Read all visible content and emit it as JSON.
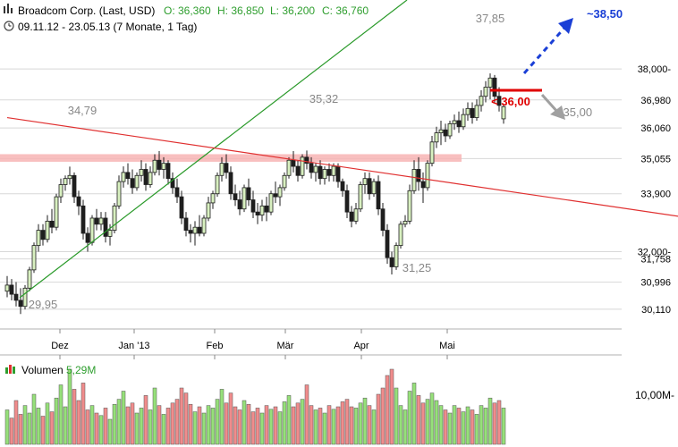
{
  "header": {
    "title": "Broadcom Corp. (Last, USD)",
    "ohlc": [
      {
        "label": "O: 36,360",
        "color": "#2e9e2e"
      },
      {
        "label": "H: 36,850",
        "color": "#2e9e2e"
      },
      {
        "label": "L: 36,200",
        "color": "#2e9e2e"
      },
      {
        "label": "C: 36,760",
        "color": "#2e9e2e"
      }
    ],
    "range": "09.11.12 - 23.05.13 (7 Monate, 1 Tag)",
    "icon": "chart-bars-icon",
    "clock_icon": "clock-icon"
  },
  "colors": {
    "up": "#d8f0c0",
    "down": "#1e1e1e",
    "vol_up": "#96e07a",
    "vol_down": "#f08c8c",
    "trend_green": "#2a9a2a",
    "trend_red": "#e03030",
    "zone": "#f7b4b4",
    "target_blue": "#1a3fd6",
    "target_red": "#e00000",
    "arrow_gray": "#a0a0a0",
    "grid": "#d8d8d8"
  },
  "volume": {
    "label": "Volumen",
    "value": "5,29M",
    "tick": "10,00M-"
  },
  "chart_data": {
    "type": "candlestick",
    "x_labels": [
      "Dez",
      "Jan '13",
      "Feb",
      "Mär",
      "Apr",
      "Mai"
    ],
    "y_ticks": [
      "38,000-",
      "36,980",
      "36,060",
      "35,055",
      "33,900",
      "32,000-",
      "31,758",
      "30,996",
      "30,110"
    ],
    "y_tick_values": [
      38.0,
      36.98,
      36.06,
      35.055,
      33.9,
      32.0,
      31.758,
      30.996,
      30.11
    ],
    "ylim": [
      29.4,
      39.0
    ],
    "annotations": [
      {
        "text": "34,79",
        "x": 28,
        "y": 34.79
      },
      {
        "text": "35,32",
        "x": 86,
        "y": 35.32
      },
      {
        "text": "37,85",
        "x": 137,
        "y": 37.85
      },
      {
        "text": "31,25",
        "x": 117,
        "y": 31.25
      },
      {
        "text": "29,95",
        "x": 5,
        "y": 29.95
      },
      {
        "text": "< 36,00",
        "x": 144,
        "y": 36.0
      },
      {
        "text": "~35,00",
        "x": 157,
        "y": 35.0
      },
      {
        "text": "~38,50",
        "x": 156,
        "y": 38.5
      }
    ],
    "resistance_zone": [
      34.95,
      35.2
    ],
    "trendlines": [
      {
        "name": "",
        "from": [
          5,
          29.95
        ],
        "to": [
          158,
          40.5
        ]
      },
      {
        "name": "",
        "from": [
          0,
          36.4
        ],
        "to": [
          176,
          32.6
        ]
      }
    ],
    "ohlc": [
      [
        30.7,
        31.2,
        30.5,
        30.9
      ],
      [
        30.9,
        31.1,
        30.4,
        30.6
      ],
      [
        30.6,
        31.0,
        30.2,
        30.4
      ],
      [
        30.4,
        30.8,
        29.95,
        30.2
      ],
      [
        30.2,
        30.9,
        30.1,
        30.8
      ],
      [
        30.8,
        31.5,
        30.7,
        31.4
      ],
      [
        31.4,
        32.3,
        31.3,
        32.2
      ],
      [
        32.2,
        32.9,
        32.0,
        32.7
      ],
      [
        32.7,
        32.9,
        32.2,
        32.4
      ],
      [
        32.4,
        33.2,
        32.3,
        33.0
      ],
      [
        33.0,
        33.4,
        32.6,
        32.8
      ],
      [
        32.8,
        33.9,
        32.7,
        33.8
      ],
      [
        33.8,
        34.4,
        33.6,
        34.2
      ],
      [
        34.2,
        34.5,
        34.0,
        34.4
      ],
      [
        34.4,
        34.79,
        34.2,
        34.5
      ],
      [
        34.5,
        34.6,
        33.6,
        33.8
      ],
      [
        33.8,
        34.0,
        33.2,
        33.5
      ],
      [
        33.5,
        33.7,
        32.4,
        32.6
      ],
      [
        32.6,
        32.8,
        32.0,
        32.3
      ],
      [
        32.3,
        33.2,
        32.2,
        33.1
      ],
      [
        33.1,
        33.4,
        32.7,
        32.9
      ],
      [
        32.9,
        33.3,
        32.7,
        33.1
      ],
      [
        33.1,
        33.3,
        32.3,
        32.5
      ],
      [
        32.5,
        32.9,
        32.2,
        32.7
      ],
      [
        32.7,
        33.6,
        32.6,
        33.5
      ],
      [
        33.5,
        34.5,
        33.4,
        34.3
      ],
      [
        34.3,
        34.8,
        34.1,
        34.6
      ],
      [
        34.6,
        34.9,
        34.2,
        34.4
      ],
      [
        34.4,
        34.7,
        33.9,
        34.1
      ],
      [
        34.1,
        34.6,
        34.0,
        34.5
      ],
      [
        34.5,
        35.0,
        34.3,
        34.7
      ],
      [
        34.7,
        34.9,
        34.0,
        34.2
      ],
      [
        34.2,
        34.8,
        34.1,
        34.6
      ],
      [
        34.6,
        35.2,
        34.5,
        35.0
      ],
      [
        35.0,
        35.3,
        34.5,
        34.7
      ],
      [
        34.7,
        35.1,
        34.4,
        34.9
      ],
      [
        34.9,
        35.0,
        34.2,
        34.4
      ],
      [
        34.4,
        34.6,
        33.9,
        34.1
      ],
      [
        34.1,
        34.4,
        33.6,
        33.8
      ],
      [
        33.8,
        34.0,
        32.9,
        33.1
      ],
      [
        33.1,
        33.3,
        32.5,
        32.7
      ],
      [
        32.7,
        32.9,
        32.3,
        32.6
      ],
      [
        32.6,
        33.0,
        32.2,
        32.8
      ],
      [
        32.8,
        33.2,
        32.5,
        32.6
      ],
      [
        32.6,
        33.2,
        32.5,
        33.1
      ],
      [
        33.1,
        33.8,
        33.0,
        33.6
      ],
      [
        33.6,
        34.0,
        33.4,
        33.9
      ],
      [
        33.9,
        34.6,
        33.8,
        34.5
      ],
      [
        34.5,
        35.1,
        34.3,
        34.9
      ],
      [
        34.9,
        35.2,
        34.4,
        34.6
      ],
      [
        34.6,
        34.8,
        33.7,
        33.9
      ],
      [
        33.9,
        34.2,
        33.5,
        33.7
      ],
      [
        33.7,
        34.0,
        33.2,
        33.4
      ],
      [
        33.4,
        34.2,
        33.3,
        34.1
      ],
      [
        34.1,
        34.4,
        33.5,
        33.7
      ],
      [
        33.7,
        34.0,
        33.1,
        33.3
      ],
      [
        33.3,
        33.6,
        32.9,
        33.2
      ],
      [
        33.2,
        33.7,
        33.0,
        33.5
      ],
      [
        33.5,
        33.8,
        33.0,
        33.3
      ],
      [
        33.3,
        34.0,
        33.2,
        33.9
      ],
      [
        33.9,
        34.3,
        33.6,
        33.8
      ],
      [
        33.8,
        34.2,
        33.5,
        34.1
      ],
      [
        34.1,
        34.6,
        34.0,
        34.5
      ],
      [
        34.5,
        35.1,
        34.4,
        35.0
      ],
      [
        35.0,
        35.3,
        34.6,
        34.8
      ],
      [
        34.8,
        35.0,
        34.3,
        34.5
      ],
      [
        34.5,
        35.2,
        34.4,
        35.1
      ],
      [
        35.1,
        35.32,
        34.7,
        34.9
      ],
      [
        34.9,
        35.1,
        34.4,
        34.6
      ],
      [
        34.6,
        34.9,
        34.3,
        34.8
      ],
      [
        34.8,
        35.0,
        34.2,
        34.4
      ],
      [
        34.4,
        34.8,
        34.2,
        34.7
      ],
      [
        34.7,
        34.9,
        34.3,
        34.5
      ],
      [
        34.5,
        34.9,
        34.3,
        34.8
      ],
      [
        34.8,
        34.9,
        34.1,
        34.3
      ],
      [
        34.3,
        34.4,
        33.8,
        34.0
      ],
      [
        34.0,
        34.2,
        33.1,
        33.3
      ],
      [
        33.3,
        33.5,
        32.8,
        33.0
      ],
      [
        33.0,
        33.6,
        32.9,
        33.4
      ],
      [
        33.4,
        34.3,
        33.3,
        34.2
      ],
      [
        34.2,
        34.6,
        33.9,
        34.4
      ],
      [
        34.4,
        34.6,
        33.7,
        33.9
      ],
      [
        33.9,
        34.4,
        33.8,
        34.3
      ],
      [
        34.3,
        34.5,
        33.2,
        33.4
      ],
      [
        33.4,
        33.6,
        32.5,
        32.7
      ],
      [
        32.7,
        32.9,
        31.6,
        31.8
      ],
      [
        31.8,
        32.0,
        31.25,
        31.5
      ],
      [
        31.5,
        32.3,
        31.4,
        32.2
      ],
      [
        32.2,
        33.0,
        32.1,
        32.9
      ],
      [
        32.9,
        33.2,
        32.8,
        33.0
      ],
      [
        33.0,
        34.2,
        32.9,
        34.0
      ],
      [
        34.0,
        35.0,
        33.9,
        34.7
      ],
      [
        34.7,
        35.1,
        34.0,
        34.3
      ],
      [
        34.3,
        34.6,
        33.6,
        34.1
      ],
      [
        34.1,
        35.0,
        34.0,
        34.9
      ],
      [
        34.9,
        35.8,
        34.8,
        35.6
      ],
      [
        35.6,
        36.1,
        35.4,
        35.9
      ],
      [
        35.9,
        36.3,
        35.5,
        36.0
      ],
      [
        36.0,
        36.2,
        35.6,
        35.8
      ],
      [
        35.8,
        36.3,
        35.7,
        36.2
      ],
      [
        36.2,
        36.5,
        36.0,
        36.3
      ],
      [
        36.3,
        36.6,
        35.9,
        36.1
      ],
      [
        36.1,
        36.7,
        36.0,
        36.5
      ],
      [
        36.5,
        36.9,
        36.3,
        36.7
      ],
      [
        36.7,
        36.9,
        36.2,
        36.4
      ],
      [
        36.4,
        37.0,
        36.3,
        36.8
      ],
      [
        36.8,
        37.3,
        36.6,
        37.1
      ],
      [
        37.1,
        37.6,
        36.9,
        37.4
      ],
      [
        37.4,
        37.85,
        37.0,
        37.7
      ],
      [
        37.7,
        37.8,
        36.9,
        37.1
      ],
      [
        37.1,
        37.4,
        36.6,
        36.8
      ],
      [
        36.36,
        36.85,
        36.2,
        36.76
      ]
    ],
    "volumes": [
      0.55,
      0.42,
      0.7,
      0.48,
      0.62,
      0.5,
      0.8,
      0.58,
      0.45,
      0.66,
      0.52,
      0.74,
      0.95,
      0.6,
      1.2,
      0.88,
      0.7,
      0.98,
      0.55,
      0.62,
      0.5,
      0.46,
      0.58,
      0.4,
      0.64,
      0.72,
      0.85,
      0.6,
      0.66,
      0.5,
      0.58,
      0.78,
      0.55,
      0.9,
      0.62,
      0.48,
      0.58,
      0.66,
      0.72,
      0.9,
      0.82,
      0.64,
      0.52,
      0.6,
      0.5,
      0.62,
      0.58,
      0.72,
      0.88,
      0.66,
      0.82,
      0.6,
      0.55,
      0.7,
      0.64,
      0.52,
      0.58,
      0.5,
      0.62,
      0.56,
      0.6,
      0.52,
      0.68,
      0.78,
      0.6,
      0.66,
      0.72,
      0.95,
      0.62,
      0.55,
      0.58,
      0.5,
      0.62,
      0.56,
      0.6,
      0.68,
      0.72,
      0.6,
      0.58,
      0.66,
      0.74,
      0.62,
      0.55,
      0.8,
      0.9,
      1.1,
      1.2,
      0.9,
      0.62,
      0.55,
      0.85,
      0.98,
      0.78,
      0.66,
      0.72,
      0.82,
      0.7,
      0.62,
      0.55,
      0.5,
      0.62,
      0.58,
      0.52,
      0.6,
      0.55,
      0.48,
      0.62,
      0.58,
      0.74,
      0.66,
      0.7,
      0.58
    ]
  }
}
